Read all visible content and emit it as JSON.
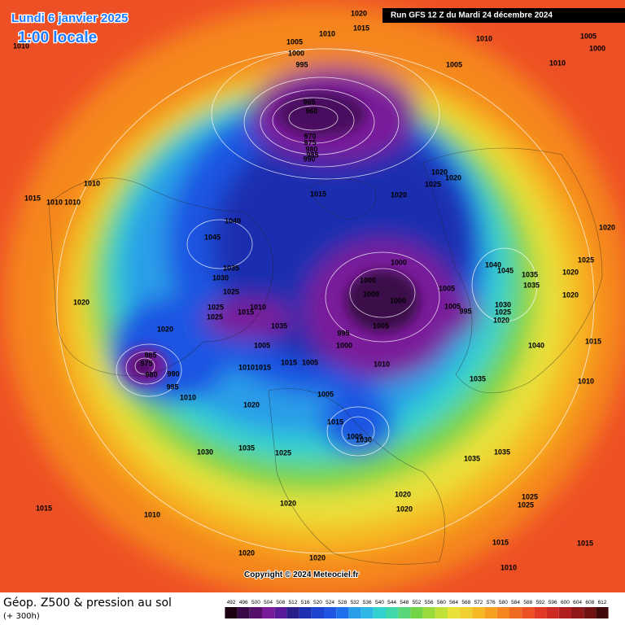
{
  "header": {
    "date": "Lundi 6 janvier 2025",
    "time": "1:00 locale",
    "run": "Run GFS 12 Z du Mardi 24 décembre 2024"
  },
  "footer": {
    "title": "Géop. Z500 & pression au sol",
    "lead": "(+ 300h)",
    "copyright": "Copyright © 2024 Meteociel.fr"
  },
  "scale": {
    "labels": [
      "492",
      "496",
      "500",
      "504",
      "508",
      "512",
      "516",
      "520",
      "524",
      "528",
      "532",
      "536",
      "540",
      "544",
      "548",
      "552",
      "556",
      "560",
      "564",
      "568",
      "572",
      "576",
      "580",
      "584",
      "588",
      "592",
      "596",
      "600",
      "604",
      "608",
      "612"
    ]
  },
  "isobar_labels": [
    "1020",
    "1015",
    "1010",
    "1005",
    "1000",
    "995",
    "965",
    "960",
    "970",
    "975",
    "980",
    "985",
    "990",
    "1010",
    "1010",
    "1005",
    "1000",
    "1005",
    "1010",
    "1010",
    "1015",
    "1010",
    "1010",
    "1015",
    "1020",
    "1020",
    "1020",
    "1025",
    "1040",
    "1045",
    "1035",
    "1030",
    "1025",
    "1025",
    "1025",
    "1015",
    "1010",
    "1020",
    "1020",
    "1000",
    "1000",
    "1000",
    "1000",
    "1005",
    "1005",
    "995",
    "1040",
    "1045",
    "1035",
    "1035",
    "1030",
    "1025",
    "1020",
    "1020",
    "1025",
    "1020",
    "1020",
    "1015",
    "1040",
    "1010",
    "1035",
    "995",
    "1000",
    "1005",
    "1035",
    "1005",
    "1010",
    "1015",
    "1005",
    "985",
    "975",
    "980",
    "990",
    "995",
    "1010",
    "1010",
    "1015",
    "1005",
    "1020",
    "1015",
    "1005",
    "1030",
    "1035",
    "1030",
    "1025",
    "1035",
    "1035",
    "1020",
    "1020",
    "1020",
    "1025",
    "1025",
    "1015",
    "1010",
    "1020",
    "1020",
    "1015",
    "1015",
    "1010"
  ]
}
